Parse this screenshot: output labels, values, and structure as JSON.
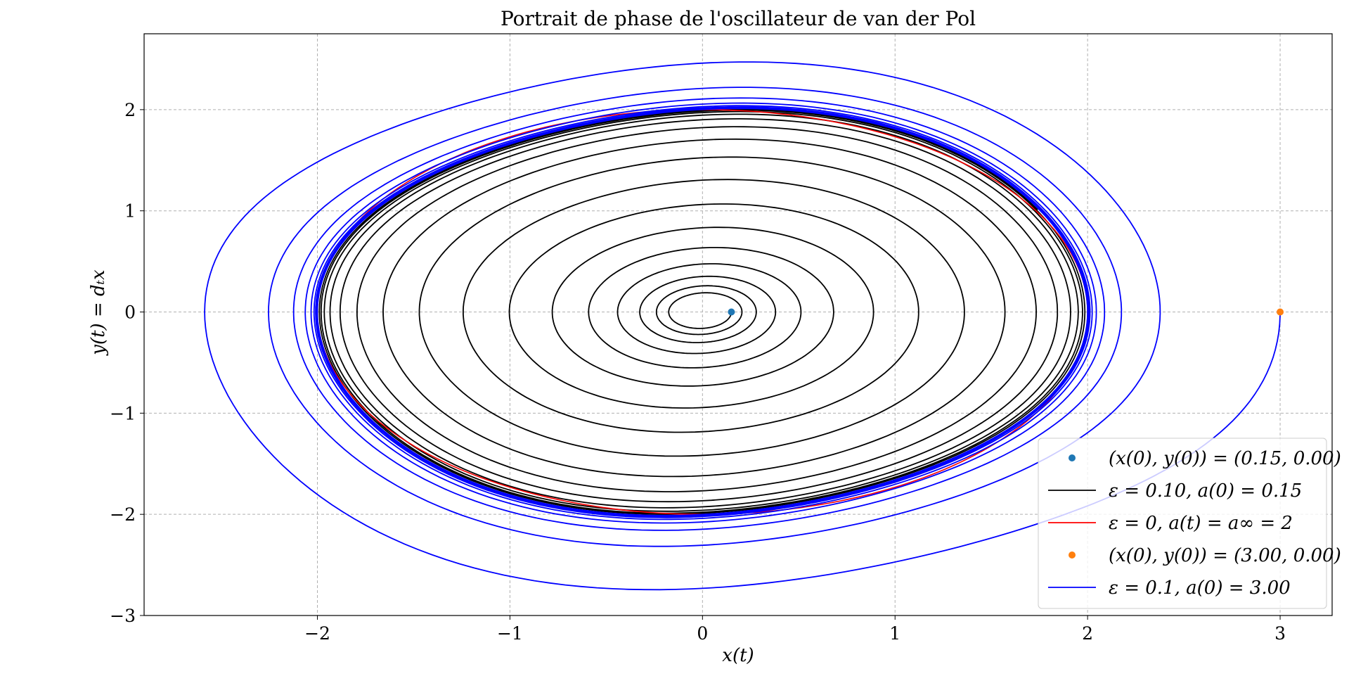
{
  "chart_data": {
    "type": "line",
    "title": "Portrait de phase de l'oscillateur de van der Pol",
    "xlabel": "x(t)",
    "ylabel": "y(t) = dₜx",
    "xlim": [
      -2.9,
      3.27
    ],
    "ylim": [
      -3.0,
      2.75
    ],
    "xticks": [
      -2,
      -1,
      0,
      1,
      2,
      3
    ],
    "yticks": [
      -3,
      -2,
      -1,
      0,
      1,
      2
    ],
    "grid": true,
    "legend_position": "lower-right",
    "series": [
      {
        "name": "(x(0), y(0)) = (0.15, 0.00)",
        "kind": "point",
        "color": "#1f77b4",
        "x": 0.15,
        "y": 0.0
      },
      {
        "name": "ε = 0.10,  a(0) = 0.15",
        "kind": "spiral",
        "color": "#000000",
        "epsilon": 0.1,
        "a0": 0.15,
        "t_max": 100
      },
      {
        "name": "ε = 0, a(t) = a∞ = 2",
        "kind": "circle",
        "color": "#ff0000",
        "radius": 2
      },
      {
        "name": "(x(0), y(0)) = (3.00, 0.00)",
        "kind": "point",
        "color": "#ff7f0e",
        "x": 3.0,
        "y": 0.0
      },
      {
        "name": "ε = 0.1,  a(0) = 3.00",
        "kind": "spiral",
        "color": "#0000ff",
        "epsilon": 0.1,
        "a0": 3.0,
        "t_max": 100
      }
    ]
  }
}
